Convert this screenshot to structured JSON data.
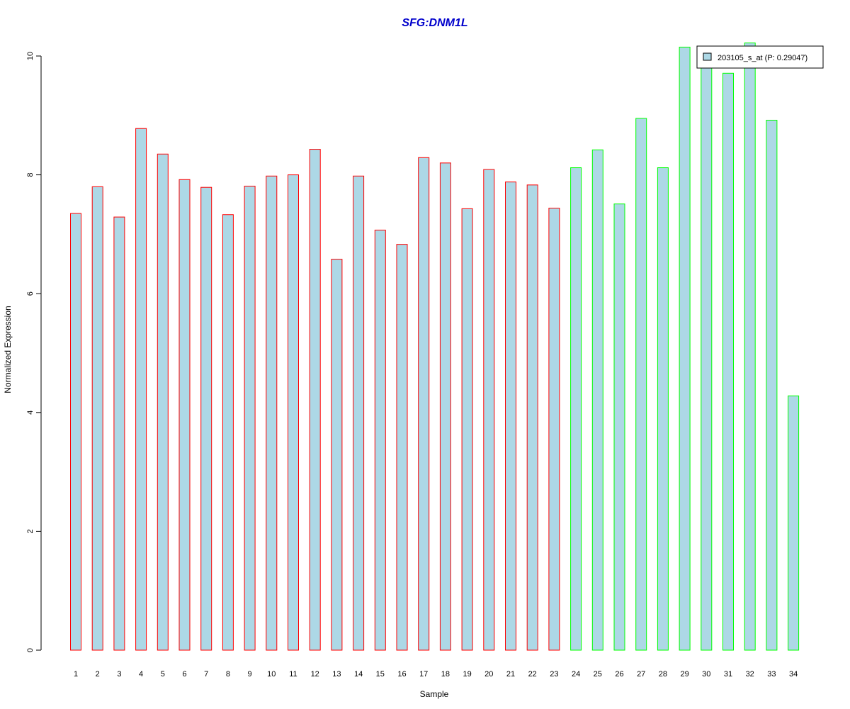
{
  "chart_data": {
    "type": "bar",
    "title": "SFG:DNM1L",
    "xlabel": "Sample",
    "ylabel": "Normalized Expression",
    "ylim": [
      0,
      10
    ],
    "yticks": [
      0,
      2,
      4,
      6,
      8,
      10
    ],
    "categories": [
      "1",
      "2",
      "3",
      "4",
      "5",
      "6",
      "7",
      "8",
      "9",
      "10",
      "11",
      "12",
      "13",
      "14",
      "15",
      "16",
      "17",
      "18",
      "19",
      "20",
      "21",
      "22",
      "23",
      "24",
      "25",
      "26",
      "27",
      "28",
      "29",
      "30",
      "31",
      "32",
      "33",
      "34"
    ],
    "series": [
      {
        "name": "203105_s_at (P: 0.29047)",
        "values": [
          7.35,
          7.8,
          7.29,
          8.78,
          8.35,
          7.92,
          7.79,
          7.33,
          7.81,
          7.98,
          8.0,
          8.43,
          6.58,
          7.98,
          7.07,
          6.83,
          8.29,
          8.2,
          7.43,
          8.09,
          7.88,
          7.83,
          7.44,
          8.12,
          8.42,
          7.51,
          8.95,
          8.12,
          10.15,
          9.97,
          9.71,
          10.22,
          8.92,
          4.28
        ],
        "groups": [
          "red",
          "red",
          "red",
          "red",
          "red",
          "red",
          "red",
          "red",
          "red",
          "red",
          "red",
          "red",
          "red",
          "red",
          "red",
          "red",
          "red",
          "red",
          "red",
          "red",
          "red",
          "red",
          "red",
          "green",
          "green",
          "green",
          "green",
          "green",
          "green",
          "green",
          "green",
          "green",
          "green",
          "green"
        ]
      }
    ],
    "colors": {
      "fill": "#add8e6",
      "red": "#ff0000",
      "green": "#00ff00",
      "title": "#0000cc"
    },
    "legend_position": "top-right",
    "grid": false
  }
}
